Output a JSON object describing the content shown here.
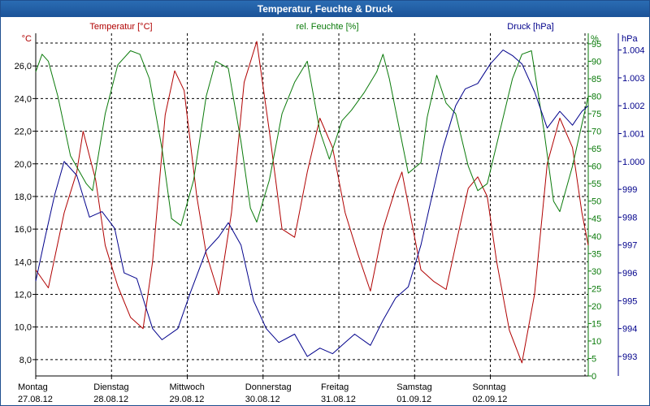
{
  "window": {
    "title": "Temperatur, Feuchte & Druck"
  },
  "colors": {
    "temperature": "#b00000",
    "humidity": "#0a7a0a",
    "pressure": "#00008b",
    "grid": "#000000"
  },
  "chart_data": {
    "type": "line",
    "grid": true,
    "x": {
      "days": [
        {
          "name": "Montag",
          "date": "27.08.12"
        },
        {
          "name": "Dienstag",
          "date": "28.08.12"
        },
        {
          "name": "Mittwoch",
          "date": "29.08.12"
        },
        {
          "name": "Donnerstag",
          "date": "30.08.12"
        },
        {
          "name": "Freitag",
          "date": "31.08.12"
        },
        {
          "name": "Samstag",
          "date": "01.09.12"
        },
        {
          "name": "Sonntag",
          "date": "02.09.12"
        }
      ],
      "range": [
        "27.08.12 00:00",
        "03.09.12 07:00"
      ]
    },
    "axes": {
      "left": {
        "unit": "°C",
        "ticks": [
          "8,0",
          "10,0",
          "12,0",
          "14,0",
          "16,0",
          "18,0",
          "20,0",
          "22,0",
          "24,0",
          "26,0"
        ],
        "range": [
          7.0,
          28.0
        ]
      },
      "right1": {
        "unit": "%",
        "ticks": [
          "0",
          "5",
          "10",
          "15",
          "20",
          "25",
          "30",
          "35",
          "40",
          "45",
          "50",
          "55",
          "60",
          "65",
          "70",
          "75",
          "80",
          "85",
          "90",
          "95"
        ],
        "range": [
          0,
          98
        ]
      },
      "right2": {
        "unit": "hPa",
        "ticks": [
          "993",
          "994",
          "995",
          "996",
          "997",
          "998",
          "999",
          "1.000",
          "1.001",
          "1.002",
          "1.003",
          "1.004"
        ],
        "range": [
          992.3,
          1004.6
        ]
      }
    },
    "series": [
      {
        "name": "Temperatur [°C]",
        "axis": "left",
        "points": [
          [
            "27.08.12 00:00",
            13.5
          ],
          [
            "27.08.12 04:00",
            12.4
          ],
          [
            "27.08.12 09:00",
            17.0
          ],
          [
            "27.08.12 13:00",
            19.5
          ],
          [
            "27.08.12 15:00",
            22.0
          ],
          [
            "27.08.12 19:00",
            19.0
          ],
          [
            "27.08.12 22:00",
            15.0
          ],
          [
            "28.08.12 02:00",
            12.5
          ],
          [
            "28.08.12 06:00",
            10.6
          ],
          [
            "28.08.12 10:00",
            9.9
          ],
          [
            "28.08.12 13:00",
            14.0
          ],
          [
            "28.08.12 17:00",
            23.0
          ],
          [
            "28.08.12 20:00",
            25.7
          ],
          [
            "28.08.12 23:00",
            24.5
          ],
          [
            "29.08.12 03:00",
            18.0
          ],
          [
            "29.08.12 06:00",
            14.5
          ],
          [
            "29.08.12 10:00",
            12.0
          ],
          [
            "29.08.12 14:00",
            17.0
          ],
          [
            "29.08.12 18:00",
            25.0
          ],
          [
            "29.08.12 22:00",
            27.5
          ],
          [
            "30.08.12 02:00",
            22.0
          ],
          [
            "30.08.12 06:00",
            16.0
          ],
          [
            "30.08.12 10:00",
            15.5
          ],
          [
            "30.08.12 14:00",
            19.5
          ],
          [
            "30.08.12 18:00",
            22.8
          ],
          [
            "30.08.12 22:00",
            21.0
          ],
          [
            "31.08.12 02:00",
            17.0
          ],
          [
            "31.08.12 06:00",
            14.5
          ],
          [
            "31.08.12 10:00",
            12.2
          ],
          [
            "31.08.12 14:00",
            16.0
          ],
          [
            "31.08.12 18:00",
            18.5
          ],
          [
            "31.08.12 20:00",
            19.5
          ],
          [
            "31.08.12 22:00",
            17.5
          ],
          [
            "01.09.12 02:00",
            13.5
          ],
          [
            "01.09.12 06:00",
            12.8
          ],
          [
            "01.09.12 10:00",
            12.3
          ],
          [
            "01.09.12 13:00",
            15.0
          ],
          [
            "01.09.12 17:00",
            18.5
          ],
          [
            "01.09.12 20:00",
            19.2
          ],
          [
            "01.09.12 23:00",
            18.0
          ],
          [
            "02.09.12 02:00",
            14.0
          ],
          [
            "02.09.12 06:00",
            9.8
          ],
          [
            "02.09.12 10:00",
            7.8
          ],
          [
            "02.09.12 14:00",
            12.0
          ],
          [
            "02.09.12 18:00",
            20.0
          ],
          [
            "02.09.12 22:00",
            22.8
          ],
          [
            "03.09.12 02:00",
            21.0
          ],
          [
            "03.09.12 05:00",
            17.0
          ],
          [
            "03.09.12 07:00",
            15.0
          ]
        ]
      },
      {
        "name": "rel. Feuchte [%]",
        "axis": "right1",
        "points": [
          [
            "27.08.12 00:00",
            87
          ],
          [
            "27.08.12 02:00",
            92
          ],
          [
            "27.08.12 04:00",
            90
          ],
          [
            "27.08.12 07:00",
            80
          ],
          [
            "27.08.12 11:00",
            63
          ],
          [
            "27.08.12 16:00",
            55
          ],
          [
            "27.08.12 18:00",
            53
          ],
          [
            "27.08.12 22:00",
            75
          ],
          [
            "28.08.12 02:00",
            89
          ],
          [
            "28.08.12 06:00",
            93
          ],
          [
            "28.08.12 09:00",
            92
          ],
          [
            "28.08.12 12:00",
            85
          ],
          [
            "28.08.12 16:00",
            65
          ],
          [
            "28.08.12 19:00",
            45
          ],
          [
            "28.08.12 22:00",
            43
          ],
          [
            "29.08.12 02:00",
            56
          ],
          [
            "29.08.12 06:00",
            80
          ],
          [
            "29.08.12 09:00",
            90
          ],
          [
            "29.08.12 13:00",
            88
          ],
          [
            "29.08.12 17:00",
            67
          ],
          [
            "29.08.12 20:00",
            48
          ],
          [
            "29.08.12 22:00",
            44
          ],
          [
            "30.08.12 02:00",
            56
          ],
          [
            "30.08.12 06:00",
            75
          ],
          [
            "30.08.12 10:00",
            84
          ],
          [
            "30.08.12 14:00",
            90
          ],
          [
            "30.08.12 18:00",
            70
          ],
          [
            "30.08.12 21:00",
            62
          ],
          [
            "31.08.12 01:00",
            73
          ],
          [
            "31.08.12 04:00",
            76
          ],
          [
            "31.08.12 08:00",
            81
          ],
          [
            "31.08.12 12:00",
            87
          ],
          [
            "31.08.12 14:00",
            92
          ],
          [
            "31.08.12 16:00",
            85
          ],
          [
            "31.08.12 20:00",
            67
          ],
          [
            "31.08.12 22:00",
            58
          ],
          [
            "01.09.12 02:00",
            61
          ],
          [
            "01.09.12 04:00",
            74
          ],
          [
            "01.09.12 07:00",
            86
          ],
          [
            "01.09.12 10:00",
            78
          ],
          [
            "01.09.12 13:00",
            75
          ],
          [
            "01.09.12 17:00",
            60
          ],
          [
            "01.09.12 20:00",
            53
          ],
          [
            "01.09.12 23:00",
            55
          ],
          [
            "02.09.12 03:00",
            70
          ],
          [
            "02.09.12 07:00",
            85
          ],
          [
            "02.09.12 10:00",
            92
          ],
          [
            "02.09.12 13:00",
            93
          ],
          [
            "02.09.12 17:00",
            70
          ],
          [
            "02.09.12 20:00",
            50
          ],
          [
            "02.09.12 22:00",
            47
          ],
          [
            "03.09.12 02:00",
            60
          ],
          [
            "03.09.12 05:00",
            72
          ],
          [
            "03.09.12 07:00",
            80
          ]
        ]
      },
      {
        "name": "Druck [hPa]",
        "axis": "right2",
        "points": [
          [
            "27.08.12 00:00",
            995.7
          ],
          [
            "27.08.12 03:00",
            997.3
          ],
          [
            "27.08.12 06:00",
            998.8
          ],
          [
            "27.08.12 09:00",
            1000.0
          ],
          [
            "27.08.12 13:00",
            999.5
          ],
          [
            "27.08.12 17:00",
            998.0
          ],
          [
            "27.08.12 21:00",
            998.2
          ],
          [
            "28.08.12 01:00",
            997.6
          ],
          [
            "28.08.12 04:00",
            996.0
          ],
          [
            "28.08.12 08:00",
            995.8
          ],
          [
            "28.08.12 13:00",
            994.0
          ],
          [
            "28.08.12 16:00",
            993.6
          ],
          [
            "28.08.12 21:00",
            994.0
          ],
          [
            "29.08.12 01:00",
            995.3
          ],
          [
            "29.08.12 06:00",
            996.8
          ],
          [
            "29.08.12 10:00",
            997.3
          ],
          [
            "29.08.12 13:00",
            997.8
          ],
          [
            "29.08.12 17:00",
            997.0
          ],
          [
            "29.08.12 21:00",
            995.0
          ],
          [
            "30.08.12 01:00",
            994.0
          ],
          [
            "30.08.12 05:00",
            993.5
          ],
          [
            "30.08.12 10:00",
            993.8
          ],
          [
            "30.08.12 14:00",
            993.0
          ],
          [
            "30.08.12 18:00",
            993.3
          ],
          [
            "30.08.12 22:00",
            993.1
          ],
          [
            "31.08.12 02:00",
            993.5
          ],
          [
            "31.08.12 05:00",
            993.8
          ],
          [
            "31.08.12 10:00",
            993.4
          ],
          [
            "31.08.12 14:00",
            994.3
          ],
          [
            "31.08.12 18:00",
            995.1
          ],
          [
            "31.08.12 22:00",
            995.5
          ],
          [
            "01.09.12 02:00",
            997.0
          ],
          [
            "01.09.12 05:00",
            998.5
          ],
          [
            "01.09.12 09:00",
            1000.5
          ],
          [
            "01.09.12 13:00",
            1002.0
          ],
          [
            "01.09.12 16:00",
            1002.6
          ],
          [
            "01.09.12 20:00",
            1002.8
          ],
          [
            "02.09.12 00:00",
            1003.5
          ],
          [
            "02.09.12 04:00",
            1004.0
          ],
          [
            "02.09.12 07:00",
            1003.8
          ],
          [
            "02.09.12 10:00",
            1003.5
          ],
          [
            "02.09.12 14:00",
            1002.5
          ],
          [
            "02.09.12 18:00",
            1001.2
          ],
          [
            "02.09.12 22:00",
            1001.8
          ],
          [
            "03.09.12 02:00",
            1001.3
          ],
          [
            "03.09.12 05:00",
            1001.8
          ],
          [
            "03.09.12 07:00",
            1002.0
          ]
        ]
      }
    ]
  }
}
